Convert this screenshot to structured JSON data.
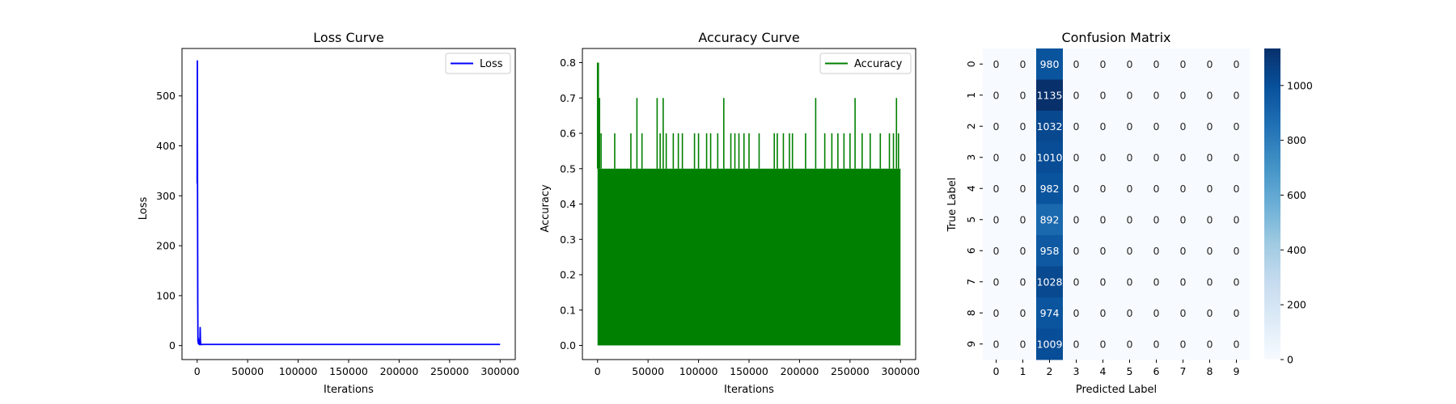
{
  "chart_data": [
    {
      "type": "line",
      "title": "Loss Curve",
      "xlabel": "Iterations",
      "ylabel": "Loss",
      "xlim": [
        -15000,
        315000
      ],
      "ylim": [
        -28,
        595
      ],
      "xticks": [
        0,
        50000,
        100000,
        150000,
        200000,
        250000,
        300000
      ],
      "yticks": [
        0,
        100,
        200,
        300,
        400,
        500
      ],
      "legend": "top-right",
      "grid": false,
      "series": [
        {
          "name": "Loss",
          "color": "#0000ff",
          "x": [
            0,
            200,
            400,
            600,
            800,
            1000,
            1200,
            1500,
            1800,
            2100,
            2400,
            2700,
            3000,
            3300,
            3600,
            4000,
            5000,
            10000,
            50000,
            100000,
            150000,
            200000,
            250000,
            300000
          ],
          "y": [
            325,
            570,
            300,
            90,
            8,
            15,
            4,
            12,
            3,
            6,
            2,
            2,
            36,
            8,
            2,
            2,
            2.3,
            2.3,
            2.3,
            2.3,
            2.3,
            2.3,
            2.3,
            2.3
          ]
        }
      ]
    },
    {
      "type": "line",
      "title": "Accuracy Curve",
      "xlabel": "Iterations",
      "ylabel": "Accuracy",
      "xlim": [
        -15000,
        315000
      ],
      "ylim": [
        -0.04,
        0.84
      ],
      "xticks": [
        0,
        50000,
        100000,
        150000,
        200000,
        250000,
        300000
      ],
      "yticks": [
        0.0,
        0.1,
        0.2,
        0.3,
        0.4,
        0.5,
        0.6,
        0.7,
        0.8
      ],
      "legend": "top-right",
      "grid": false,
      "series": [
        {
          "name": "Accuracy",
          "color": "#008000",
          "band": {
            "x_start": 0,
            "x_end": 300000,
            "low": 0.0,
            "high": 0.5
          },
          "spikes": [
            {
              "x": 0,
              "y": 0.8
            },
            {
              "x": 800,
              "y": 0.8
            },
            {
              "x": 2000,
              "y": 0.7
            },
            {
              "x": 3500,
              "y": 0.6
            },
            {
              "x": 17000,
              "y": 0.6
            },
            {
              "x": 33000,
              "y": 0.6
            },
            {
              "x": 39000,
              "y": 0.7
            },
            {
              "x": 44000,
              "y": 0.6
            },
            {
              "x": 59000,
              "y": 0.7
            },
            {
              "x": 62000,
              "y": 0.6
            },
            {
              "x": 65000,
              "y": 0.7
            },
            {
              "x": 68000,
              "y": 0.6
            },
            {
              "x": 75000,
              "y": 0.6
            },
            {
              "x": 80000,
              "y": 0.6
            },
            {
              "x": 84000,
              "y": 0.6
            },
            {
              "x": 96000,
              "y": 0.6
            },
            {
              "x": 100000,
              "y": 0.6
            },
            {
              "x": 108000,
              "y": 0.6
            },
            {
              "x": 112000,
              "y": 0.6
            },
            {
              "x": 119000,
              "y": 0.6
            },
            {
              "x": 125000,
              "y": 0.7
            },
            {
              "x": 132000,
              "y": 0.6
            },
            {
              "x": 136000,
              "y": 0.6
            },
            {
              "x": 140000,
              "y": 0.6
            },
            {
              "x": 145000,
              "y": 0.6
            },
            {
              "x": 150000,
              "y": 0.6
            },
            {
              "x": 160000,
              "y": 0.6
            },
            {
              "x": 175000,
              "y": 0.6
            },
            {
              "x": 178000,
              "y": 0.6
            },
            {
              "x": 184000,
              "y": 0.6
            },
            {
              "x": 190000,
              "y": 0.6
            },
            {
              "x": 193000,
              "y": 0.6
            },
            {
              "x": 206000,
              "y": 0.6
            },
            {
              "x": 216000,
              "y": 0.7
            },
            {
              "x": 225000,
              "y": 0.6
            },
            {
              "x": 232000,
              "y": 0.6
            },
            {
              "x": 238000,
              "y": 0.6
            },
            {
              "x": 244000,
              "y": 0.6
            },
            {
              "x": 250000,
              "y": 0.6
            },
            {
              "x": 255000,
              "y": 0.7
            },
            {
              "x": 262000,
              "y": 0.6
            },
            {
              "x": 270000,
              "y": 0.6
            },
            {
              "x": 280000,
              "y": 0.6
            },
            {
              "x": 289000,
              "y": 0.6
            },
            {
              "x": 293000,
              "y": 0.6
            },
            {
              "x": 296000,
              "y": 0.7
            },
            {
              "x": 298000,
              "y": 0.6
            }
          ]
        }
      ]
    },
    {
      "type": "heatmap",
      "title": "Confusion Matrix",
      "xlabel": "Predicted Label",
      "ylabel": "True Label",
      "x_categories": [
        "0",
        "1",
        "2",
        "3",
        "4",
        "5",
        "6",
        "7",
        "8",
        "9"
      ],
      "y_categories": [
        "0",
        "1",
        "2",
        "3",
        "4",
        "5",
        "6",
        "7",
        "8",
        "9"
      ],
      "values": [
        [
          0,
          0,
          980,
          0,
          0,
          0,
          0,
          0,
          0,
          0
        ],
        [
          0,
          0,
          1135,
          0,
          0,
          0,
          0,
          0,
          0,
          0
        ],
        [
          0,
          0,
          1032,
          0,
          0,
          0,
          0,
          0,
          0,
          0
        ],
        [
          0,
          0,
          1010,
          0,
          0,
          0,
          0,
          0,
          0,
          0
        ],
        [
          0,
          0,
          982,
          0,
          0,
          0,
          0,
          0,
          0,
          0
        ],
        [
          0,
          0,
          892,
          0,
          0,
          0,
          0,
          0,
          0,
          0
        ],
        [
          0,
          0,
          958,
          0,
          0,
          0,
          0,
          0,
          0,
          0
        ],
        [
          0,
          0,
          1028,
          0,
          0,
          0,
          0,
          0,
          0,
          0
        ],
        [
          0,
          0,
          974,
          0,
          0,
          0,
          0,
          0,
          0,
          0
        ],
        [
          0,
          0,
          1009,
          0,
          0,
          0,
          0,
          0,
          0,
          0
        ]
      ],
      "colormap": "Blues",
      "colorbar_range": [
        0,
        1135
      ],
      "colorbar_ticks": [
        0,
        200,
        400,
        600,
        800,
        1000
      ]
    }
  ]
}
